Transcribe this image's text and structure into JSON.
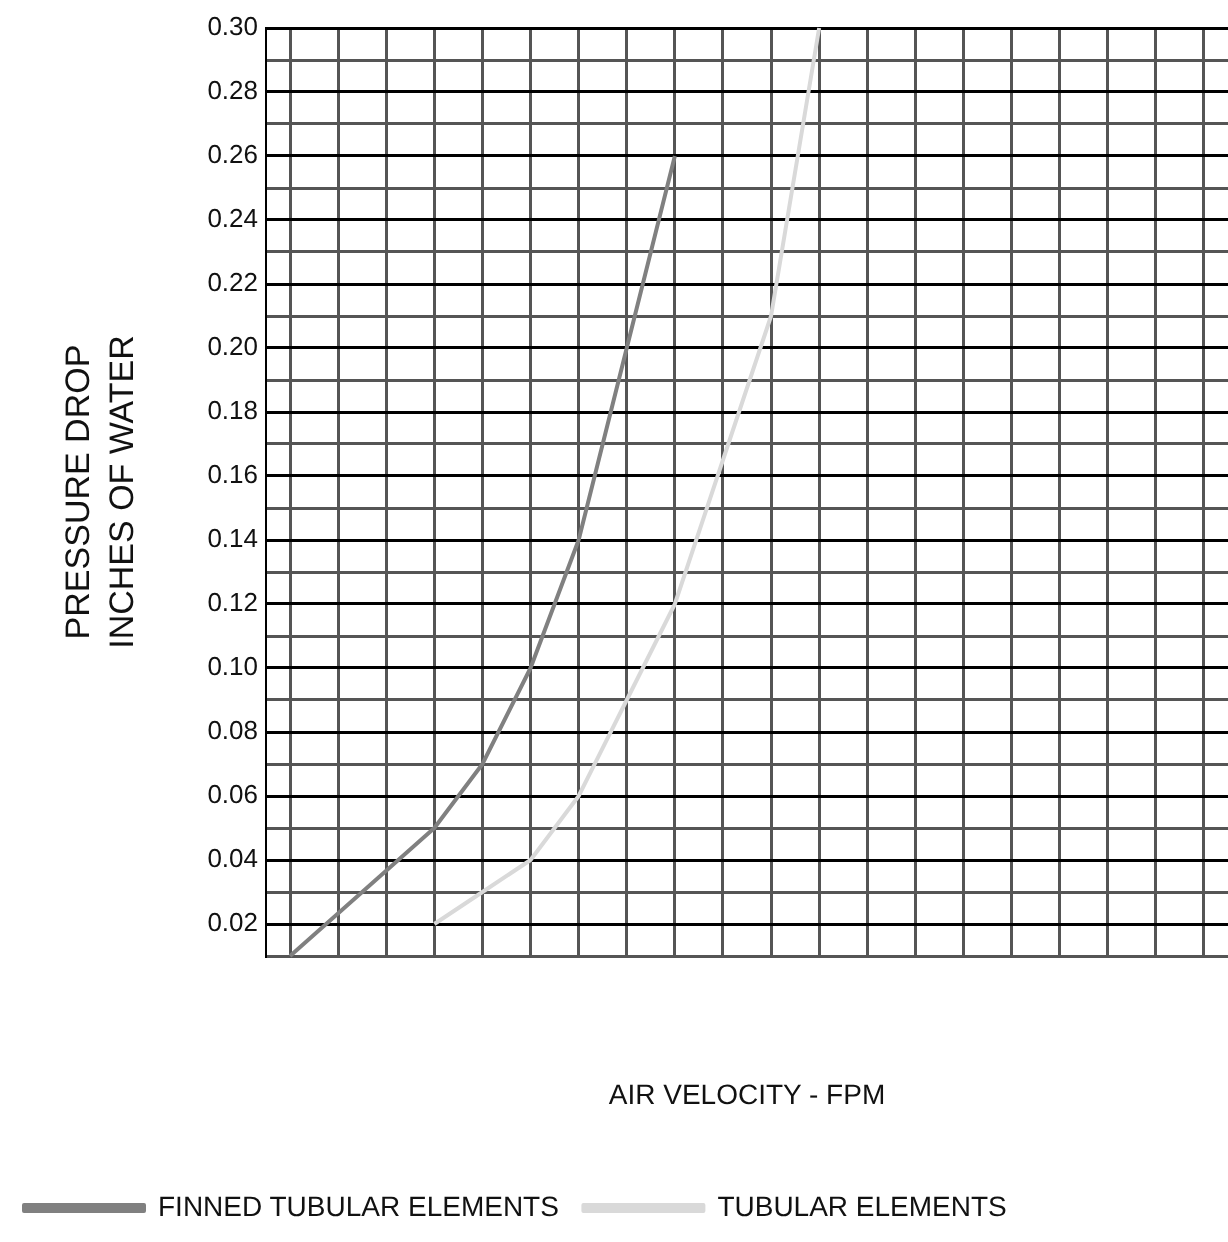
{
  "chart_data": {
    "type": "line",
    "xlabel": "AIR VELOCITY - FPM",
    "ylabel": "PRESSURE DROP\nINCHES OF WATER",
    "categories": [
      null,
      null,
      null,
      null,
      null,
      null,
      null,
      null,
      null,
      null,
      null,
      null,
      null,
      null,
      null,
      null,
      null,
      null,
      null,
      null
    ],
    "series": [
      {
        "name": "FINNED TUBULAR ELEMENTS",
        "color": "#808080",
        "values": [
          0.01,
          null,
          null,
          0.05,
          0.07,
          0.1,
          0.14,
          0.2,
          0.26,
          null,
          null,
          null,
          null,
          null,
          null,
          null,
          null,
          null,
          null,
          null
        ]
      },
      {
        "name": "TUBULAR ELEMENTS",
        "color": "#d9d9d9",
        "values": [
          null,
          null,
          null,
          0.02,
          0.03,
          0.04,
          0.06,
          0.09,
          0.12,
          0.165,
          0.21,
          0.3,
          null,
          null,
          null,
          null,
          null,
          null,
          null,
          null
        ]
      }
    ],
    "ylim": [
      0.01,
      0.3
    ],
    "yticks": [
      {
        "value": 0.01,
        "label": null
      },
      {
        "value": 0.02,
        "label": "0.02"
      },
      {
        "value": 0.03,
        "label": null
      },
      {
        "value": 0.04,
        "label": "0.04"
      },
      {
        "value": 0.05,
        "label": null
      },
      {
        "value": 0.06,
        "label": "0.06"
      },
      {
        "value": 0.07,
        "label": null
      },
      {
        "value": 0.08,
        "label": "0.08"
      },
      {
        "value": 0.09,
        "label": null
      },
      {
        "value": 0.1,
        "label": "0.10"
      },
      {
        "value": 0.11,
        "label": null
      },
      {
        "value": 0.12,
        "label": "0.12"
      },
      {
        "value": 0.13,
        "label": null
      },
      {
        "value": 0.14,
        "label": "0.14"
      },
      {
        "value": 0.15,
        "label": null
      },
      {
        "value": 0.16,
        "label": "0.16"
      },
      {
        "value": 0.17,
        "label": null
      },
      {
        "value": 0.18,
        "label": "0.18"
      },
      {
        "value": 0.19,
        "label": null
      },
      {
        "value": 0.2,
        "label": "0.20"
      },
      {
        "value": 0.21,
        "label": null
      },
      {
        "value": 0.22,
        "label": "0.22"
      },
      {
        "value": 0.23,
        "label": null
      },
      {
        "value": 0.24,
        "label": "0.24"
      },
      {
        "value": 0.25,
        "label": null
      },
      {
        "value": 0.26,
        "label": "0.26"
      },
      {
        "value": 0.27,
        "label": null
      },
      {
        "value": 0.28,
        "label": "0.28"
      },
      {
        "value": 0.29,
        "label": null
      },
      {
        "value": 0.3,
        "label": "0.30"
      }
    ],
    "grid": true,
    "legend": "bottom left",
    "tick_labels": "y",
    "marker": "none"
  }
}
